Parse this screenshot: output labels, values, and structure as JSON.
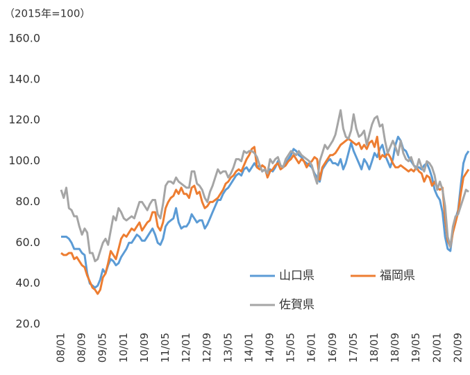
{
  "chart_data": {
    "type": "line",
    "y_label": "（2015年=100）",
    "categories": [
      "08/01",
      null,
      null,
      null,
      null,
      null,
      null,
      null,
      "08/09",
      null,
      null,
      null,
      null,
      null,
      null,
      null,
      "09/05",
      null,
      null,
      null,
      null,
      null,
      null,
      null,
      "10/01",
      null,
      null,
      null,
      null,
      null,
      null,
      null,
      "10/09",
      null,
      null,
      null,
      null,
      null,
      null,
      null,
      "11/05",
      null,
      null,
      null,
      null,
      null,
      null,
      null,
      "12/01",
      null,
      null,
      null,
      null,
      null,
      null,
      null,
      "12/09",
      null,
      null,
      null,
      null,
      null,
      null,
      null,
      "13/05",
      null,
      null,
      null,
      null,
      null,
      null,
      null,
      "14/01",
      null,
      null,
      null,
      null,
      null,
      null,
      null,
      "14/09",
      null,
      null,
      null,
      null,
      null,
      null,
      null,
      "15/05",
      null,
      null,
      null,
      null,
      null,
      null,
      null,
      "16/01",
      null,
      null,
      null,
      null,
      null,
      null,
      null,
      "16/09",
      null,
      null,
      null,
      null,
      null,
      null,
      null,
      "17/05",
      null,
      null,
      null,
      null,
      null,
      null,
      null,
      "18/01",
      null,
      null,
      null,
      null,
      null,
      null,
      null,
      "18/09",
      null,
      null,
      null,
      null,
      null,
      null,
      null,
      "19/05",
      null,
      null,
      null,
      null,
      null,
      null,
      null,
      "20/01",
      null,
      null,
      null,
      null,
      null,
      null,
      null,
      "20/09",
      null,
      null,
      null,
      null
    ],
    "series": [
      {
        "name": "山口県",
        "color": "#5b9bd5",
        "values": [
          63,
          63,
          63,
          62,
          60,
          57,
          57,
          57,
          55,
          54,
          45,
          40,
          39,
          38,
          39,
          42,
          47,
          45,
          49,
          52,
          51,
          49,
          50,
          53,
          55,
          57,
          60,
          60,
          62,
          64,
          63,
          61,
          61,
          63,
          65,
          67,
          64,
          60,
          59,
          62,
          68,
          70,
          71,
          72,
          77,
          70,
          67,
          68,
          68,
          70,
          74,
          72,
          70,
          71,
          71,
          67,
          69,
          72,
          75,
          78,
          81,
          81,
          84,
          86,
          87,
          89,
          91,
          93,
          94,
          93,
          96,
          97,
          95,
          97,
          99,
          97,
          98,
          95,
          96,
          93,
          96,
          95,
          97,
          100,
          98,
          97,
          99,
          101,
          103,
          106,
          105,
          103,
          102,
          100,
          99,
          98,
          97,
          94,
          92,
          90,
          96,
          98,
          100,
          101,
          99,
          99,
          98,
          101,
          96,
          99,
          104,
          109,
          105,
          102,
          99,
          96,
          101,
          99,
          96,
          100,
          104,
          102,
          106,
          108,
          103,
          100,
          97,
          101,
          108,
          112,
          110,
          106,
          105,
          102,
          100,
          98,
          97,
          97,
          96,
          98,
          99,
          96,
          92,
          86,
          83,
          81,
          75,
          63,
          57,
          56,
          66,
          72,
          76,
          88,
          99,
          103,
          105
        ]
      },
      {
        "name": "福岡県",
        "color": "#ed7d31",
        "values": [
          55,
          54,
          54,
          55,
          55,
          52,
          53,
          51,
          49,
          48,
          44,
          41,
          38,
          37,
          35,
          37,
          43,
          45,
          50,
          56,
          54,
          52,
          57,
          62,
          64,
          63,
          65,
          67,
          66,
          68,
          70,
          66,
          68,
          70,
          71,
          75,
          75,
          68,
          66,
          70,
          77,
          80,
          82,
          83,
          86,
          84,
          87,
          84,
          84,
          82,
          87,
          88,
          84,
          85,
          80,
          77,
          78,
          80,
          80,
          81,
          82,
          84,
          86,
          89,
          90,
          92,
          93,
          95,
          96,
          95,
          98,
          101,
          103,
          106,
          107,
          97,
          96,
          98,
          97,
          92,
          95,
          96,
          98,
          99,
          96,
          97,
          98,
          100,
          101,
          103,
          101,
          99,
          101,
          100,
          97,
          99,
          100,
          102,
          101,
          91,
          97,
          99,
          101,
          103,
          103,
          104,
          106,
          108,
          109,
          110,
          111,
          110,
          109,
          108,
          109,
          106,
          108,
          106,
          109,
          110,
          107,
          112,
          101,
          103,
          102,
          104,
          102,
          99,
          97,
          97,
          98,
          97,
          96,
          95,
          96,
          95,
          97,
          95,
          94,
          90,
          93,
          92,
          88,
          90,
          87,
          86,
          87,
          72,
          61,
          58,
          65,
          70,
          75,
          84,
          92,
          94,
          96
        ]
      },
      {
        "name": "佐賀県",
        "color": "#a5a5a5",
        "values": [
          86,
          82,
          87,
          77,
          76,
          73,
          73,
          68,
          64,
          67,
          65,
          55,
          55,
          51,
          52,
          56,
          60,
          62,
          59,
          66,
          73,
          71,
          77,
          75,
          72,
          71,
          72,
          73,
          72,
          76,
          80,
          80,
          78,
          76,
          79,
          81,
          81,
          74,
          72,
          79,
          88,
          90,
          90,
          89,
          92,
          90,
          89,
          88,
          87,
          87,
          95,
          95,
          89,
          88,
          86,
          82,
          80,
          85,
          88,
          92,
          96,
          94,
          95,
          95,
          92,
          94,
          97,
          101,
          101,
          100,
          105,
          104,
          105,
          105,
          104,
          102,
          98,
          95,
          96,
          94,
          101,
          99,
          101,
          102,
          98,
          97,
          101,
          103,
          105,
          104,
          103,
          105,
          103,
          102,
          101,
          100,
          98,
          93,
          89,
          100,
          104,
          108,
          106,
          108,
          110,
          113,
          119,
          125,
          116,
          112,
          111,
          115,
          123,
          116,
          112,
          113,
          115,
          108,
          113,
          118,
          121,
          122,
          117,
          118,
          110,
          104,
          107,
          110,
          107,
          103,
          110,
          104,
          101,
          100,
          102,
          98,
          96,
          101,
          97,
          95,
          100,
          99,
          97,
          93,
          86,
          90,
          86,
          78,
          63,
          58,
          68,
          73,
          74,
          78,
          82,
          86,
          85
        ]
      }
    ],
    "ylim": [
      20,
      160
    ],
    "yticks": [
      {
        "value": 20,
        "label": "20.0"
      },
      {
        "value": 40,
        "label": "40.0"
      },
      {
        "value": 60,
        "label": "60.0"
      },
      {
        "value": 80,
        "label": "80.0"
      },
      {
        "value": 100,
        "label": "100.0"
      },
      {
        "value": 120,
        "label": "120.0"
      },
      {
        "value": 140,
        "label": "140.0"
      },
      {
        "value": 160,
        "label": "160.0"
      }
    ],
    "grid": false
  }
}
